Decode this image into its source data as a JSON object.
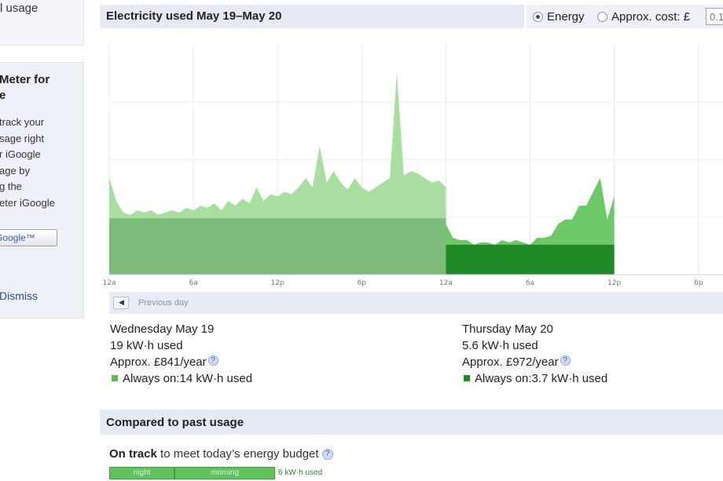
{
  "sidebar": {
    "top_label": "l usage",
    "promo_title": "Meter for\ne",
    "promo_text": "track your\nsage right\nr iGoogle\nage by\ng the\neter iGoogle",
    "add_button_label": "Google™",
    "dismiss_label": "Dismiss"
  },
  "header": {
    "title": "Electricity used May 19–May 20",
    "energy_label": "Energy",
    "cost_label": "Approx. cost: £",
    "cost_value": "0.1"
  },
  "chart_data": {
    "type": "area",
    "title": "",
    "xlabel": "",
    "ylabel": "",
    "x_tick_labels": [
      "12a",
      "6a",
      "12p",
      "6p",
      "12a",
      "6a",
      "12p",
      "6p"
    ],
    "y_unit": "relative (no y-axis labels shown)",
    "ylim": [
      0,
      100
    ],
    "grid": true,
    "series": [
      {
        "name": "Usage May 19",
        "color": "#a9dea1",
        "hours": [
          0,
          0.5,
          1,
          1.5,
          2,
          2.5,
          3,
          3.5,
          4,
          4.5,
          5,
          5.5,
          6,
          6.5,
          7,
          7.5,
          8,
          8.5,
          9,
          9.5,
          10,
          10.5,
          11,
          11.5,
          12,
          12.5,
          13,
          13.5,
          14,
          14.5,
          15,
          15.5,
          16,
          16.5,
          17,
          17.5,
          18,
          18.5,
          19,
          19.5,
          20,
          20.5,
          21,
          21.5,
          22,
          22.5,
          23,
          23.5,
          24
        ],
        "values": [
          42,
          32,
          27,
          26,
          28,
          27,
          28,
          26,
          27,
          28,
          27,
          29,
          28,
          30,
          29,
          31,
          28,
          32,
          30,
          33,
          31,
          38,
          32,
          35,
          34,
          36,
          35,
          38,
          42,
          38,
          56,
          40,
          45,
          40,
          37,
          42,
          38,
          36,
          38,
          40,
          42,
          88,
          43,
          45,
          44,
          42,
          40,
          41,
          38
        ]
      },
      {
        "name": "Usage May 20",
        "color": "#6dc866",
        "hours": [
          24,
          24.5,
          25,
          25.5,
          26,
          26.5,
          27,
          27.5,
          28,
          28.5,
          29,
          29.5,
          30,
          30.5,
          31,
          31.5,
          32,
          32.5,
          33,
          33.5,
          34,
          34.5,
          35,
          35.5,
          36
        ],
        "values": [
          22,
          16,
          15,
          15,
          13,
          14,
          14,
          13,
          15,
          14,
          15,
          14,
          13,
          16,
          16,
          17,
          22,
          24,
          24,
          30,
          30,
          36,
          42,
          24,
          34
        ]
      },
      {
        "name": "Always on May 19",
        "color": "#7dbb7a",
        "x_range": [
          0,
          24
        ],
        "value": 24.5
      },
      {
        "name": "Always on May 20",
        "color": "#1f8a26",
        "x_range": [
          24,
          36
        ],
        "value": 13
      }
    ]
  },
  "nav": {
    "prev_icon": "chevron-left-icon",
    "prev_label": "Previous day"
  },
  "days": [
    {
      "date": "Wednesday May 19",
      "used": "19 kW·h used",
      "cost": "Approx. £841/year",
      "always_on": "Always on:14 kW·h used",
      "swatch_color": "#5fb85a"
    },
    {
      "date": "Thursday May 20",
      "used": "5.6 kW·h used",
      "cost": "Approx. £972/year",
      "always_on": "Always on:3.7 kW·h used",
      "swatch_color": "#1f8a26"
    }
  ],
  "compare": {
    "title": "Compared to past usage",
    "status_bold": "On track",
    "status_rest": " to meet today’s energy budget",
    "help": "?",
    "segments": [
      "night",
      "morning"
    ],
    "used_label": "6 kW·h used"
  }
}
